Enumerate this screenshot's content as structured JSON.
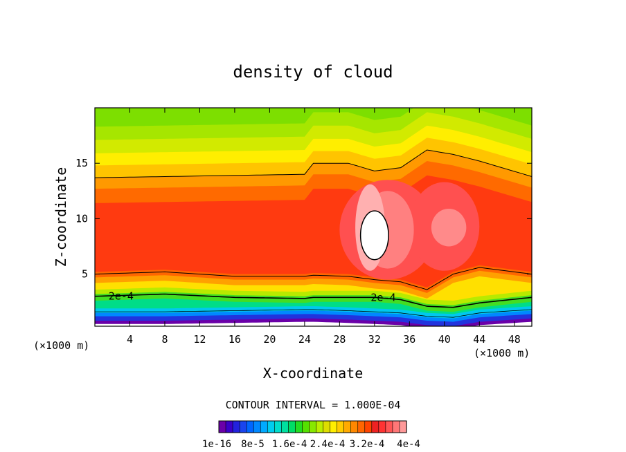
{
  "chart_data": {
    "type": "heatmap",
    "title": "density of cloud",
    "xlabel": "X-coordinate",
    "ylabel": "Z-coordinate",
    "x_units_left": "(×1000 m)",
    "x_units_right": "(×1000 m)",
    "xlim": [
      0,
      50
    ],
    "ylim": [
      0.3,
      20
    ],
    "x_ticks": [
      4,
      8,
      12,
      16,
      20,
      24,
      28,
      32,
      36,
      40,
      44,
      48
    ],
    "y_ticks": [
      5,
      10,
      15
    ],
    "contour_interval_text": "CONTOUR INTERVAL = 1.000E-04",
    "contour_labels": [
      {
        "text": "2e-4",
        "x": 3,
        "z": 3.0
      },
      {
        "text": "2e-4",
        "x": 33,
        "z": 2.9
      }
    ],
    "colorbar": {
      "tick_labels": [
        "1e-16",
        "8e-5",
        "1.6e-4",
        "2.4e-4",
        "3.2e-4",
        "4e-4"
      ],
      "range": [
        0,
        0.0004
      ],
      "colors": [
        "#6a00a8",
        "#3b00c8",
        "#2222dd",
        "#1a44ee",
        "#0066ff",
        "#0088ff",
        "#00aaff",
        "#00ccee",
        "#00ddcc",
        "#00e0a0",
        "#00dd66",
        "#22dd22",
        "#55e000",
        "#88e800",
        "#bbee00",
        "#dddd00",
        "#ffee00",
        "#ffcc00",
        "#ffaa00",
        "#ff8800",
        "#ff6600",
        "#ff4400",
        "#ee2222",
        "#ff3333",
        "#ff5555",
        "#ff7777",
        "#ff9999"
      ]
    },
    "field_profile": {
      "x": [
        0,
        8,
        16,
        24,
        25,
        29,
        32,
        35,
        38,
        41,
        44,
        50
      ],
      "top_contour_z": [
        13.7,
        13.8,
        13.9,
        14.0,
        15.0,
        15.0,
        14.3,
        14.6,
        16.2,
        15.8,
        15.2,
        13.8
      ],
      "lower_contour_z": [
        5.0,
        5.2,
        4.8,
        4.8,
        4.9,
        4.8,
        4.5,
        4.3,
        3.6,
        5.0,
        5.6,
        5.0
      ],
      "contour_2e4_z": [
        3.0,
        3.2,
        2.9,
        2.8,
        2.9,
        2.9,
        2.9,
        2.7,
        2.1,
        2.0,
        2.4,
        2.9
      ],
      "cloud_base_z": [
        1.0,
        1.0,
        1.1,
        1.2,
        1.2,
        1.1,
        1.0,
        0.9,
        0.6,
        0.5,
        0.9,
        1.2
      ]
    },
    "max_region": {
      "x_center": 32.0,
      "z_center": 8.5,
      "x_halfwidth": 1.6,
      "z_halfwidth": 2.2
    }
  }
}
